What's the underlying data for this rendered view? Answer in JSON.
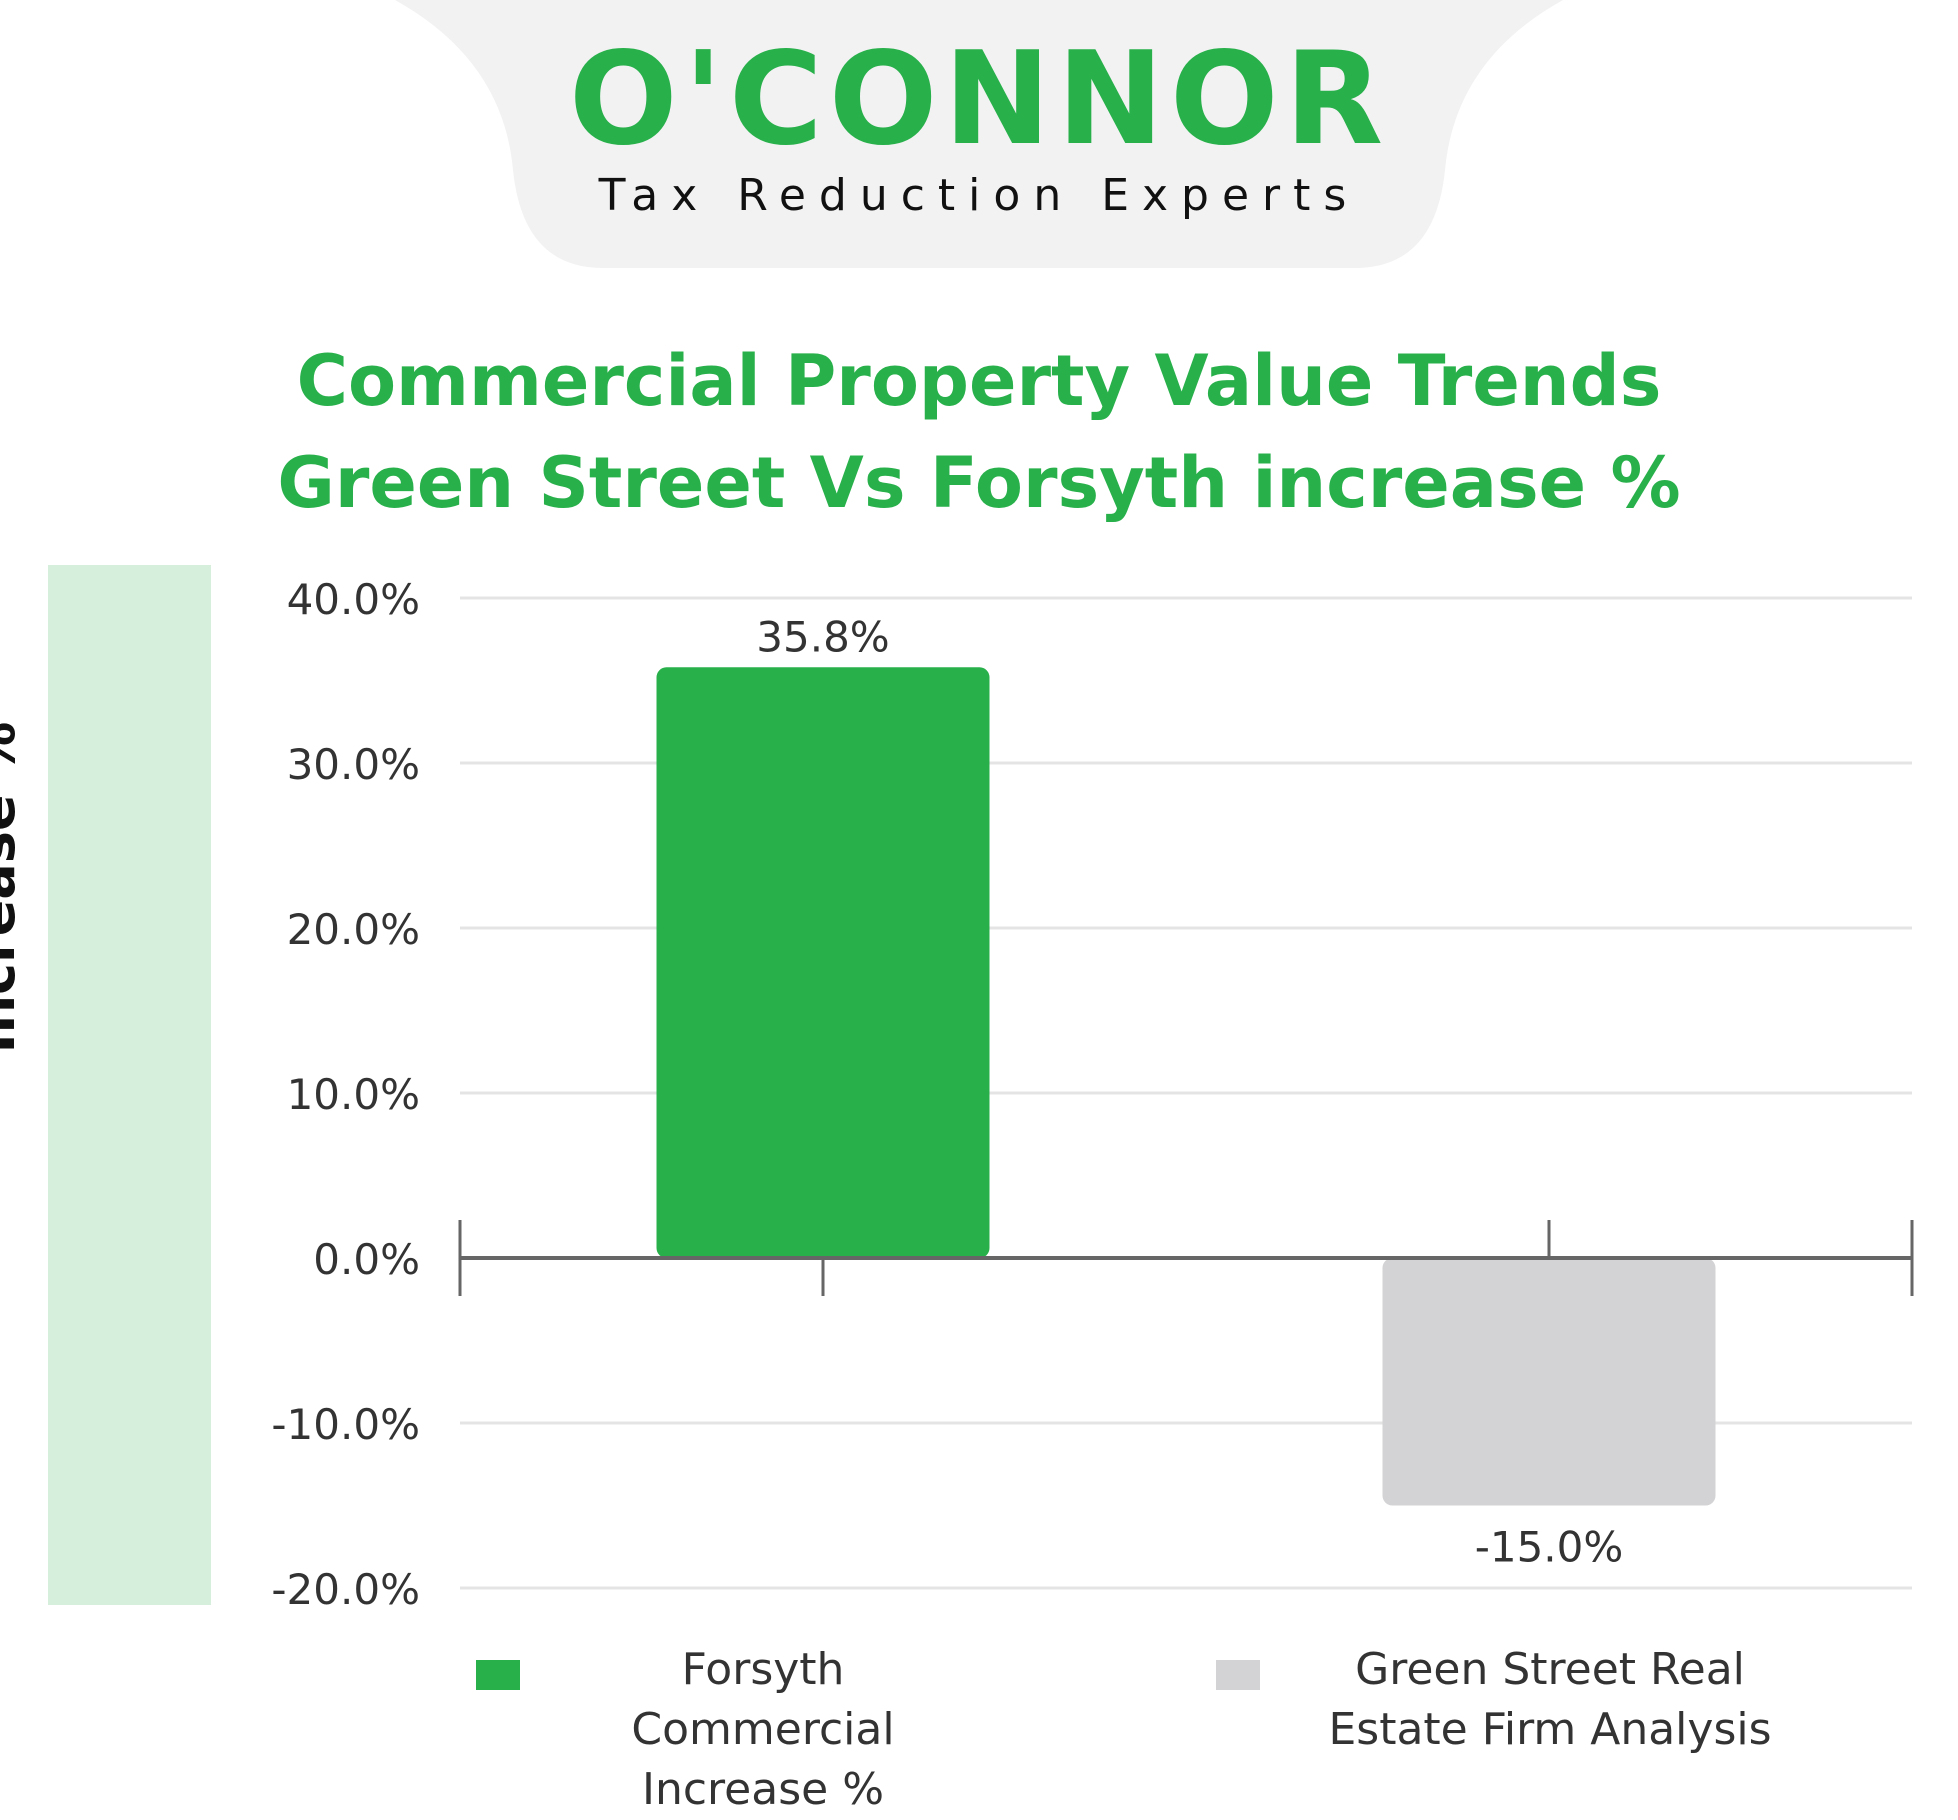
{
  "brand": {
    "name": "O'CONNOR",
    "tagline": "Tax Reduction Experts",
    "colors": {
      "green": "#28b04b",
      "tab_bg": "#f2f2f2",
      "label_panel_bg": "#d5efdc"
    }
  },
  "chart_data": {
    "type": "bar",
    "title_lines": [
      "Commercial Property Value Trends",
      "Green Street Vs Forsyth increase %"
    ],
    "ylabel": "Increase %",
    "xlabel": "",
    "ylim": [
      -20,
      40
    ],
    "yticks": [
      40,
      30,
      20,
      10,
      0,
      -10,
      -20
    ],
    "ytick_labels": [
      "40.0%",
      "30.0%",
      "20.0%",
      "10.0%",
      "0.0%",
      "-10.0%",
      "-20.0%"
    ],
    "grid": true,
    "legend_position": "bottom",
    "series": [
      {
        "name": "Forsyth Commercial Increase %",
        "values": [
          35.8
        ],
        "color": "#28b04b",
        "data_label": "35.8%"
      },
      {
        "name": "Green Street Real Estate Firm Analysis",
        "values": [
          -15.0
        ],
        "color": "#d3d3d5",
        "data_label": "-15.0%"
      }
    ]
  },
  "legend": {
    "items": [
      {
        "label": "Forsyth Commercial Increase %",
        "color": "#28b04b"
      },
      {
        "label": "Green Street Real Estate Firm Analysis",
        "color": "#d3d3d5"
      }
    ]
  }
}
